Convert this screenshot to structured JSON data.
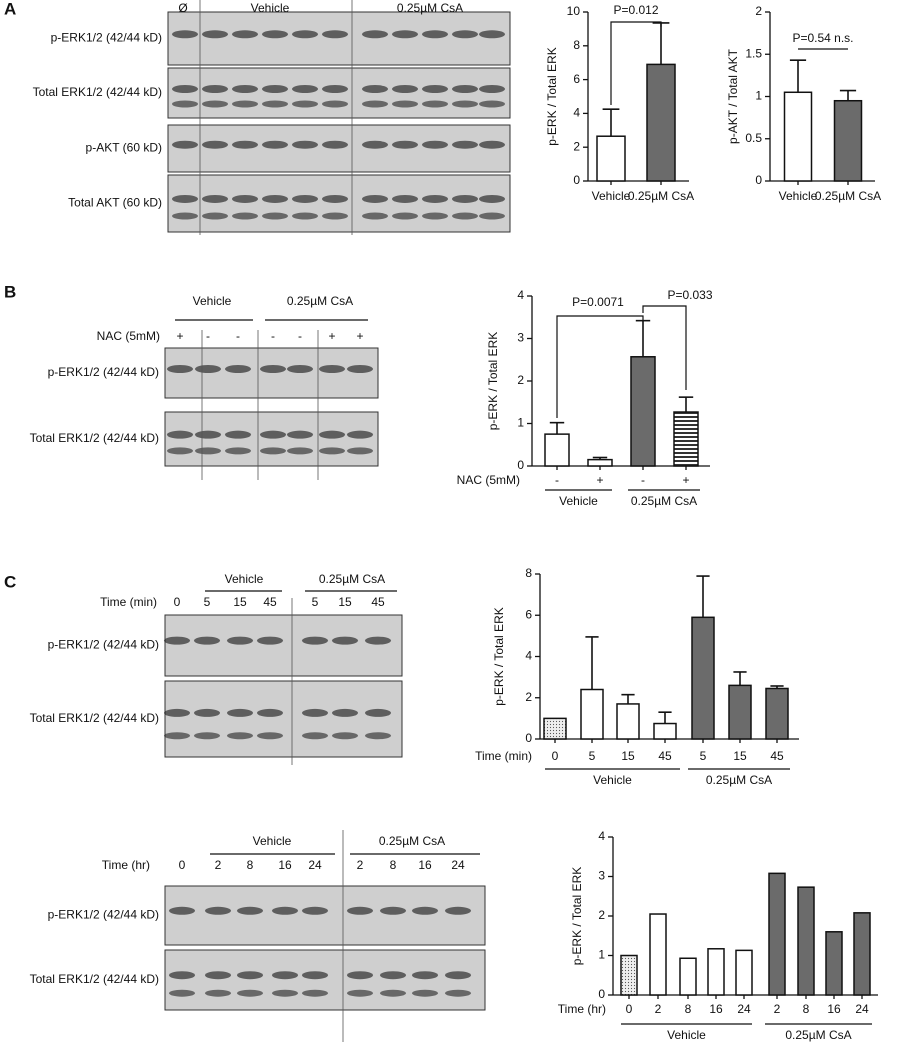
{
  "panel_labels": [
    "A",
    "B",
    "C"
  ],
  "blots": [
    {
      "groups": [
        "Ø",
        "Vehicle",
        "0.25µM CsA"
      ],
      "rows": [
        "p-ERK1/2 (42/44 kD)",
        "Total ERK1/2 (42/44 kD)",
        "p-AKT (60 kD)",
        "Total AKT (60 kD)"
      ]
    },
    {
      "groups": [
        "Vehicle",
        "0.25µM CsA"
      ],
      "lane_title": "NAC (5mM)",
      "lanes": [
        "+",
        "-",
        "-",
        "-",
        "-",
        "+",
        "+"
      ],
      "rows": [
        "p-ERK1/2 (42/44 kD)",
        "Total ERK1/2 (42/44 kD)"
      ]
    },
    {
      "groups": [
        "Vehicle",
        "0.25µM CsA"
      ],
      "lane_title": "Time (min)",
      "lanes": [
        "0",
        "5",
        "15",
        "45",
        "5",
        "15",
        "45"
      ],
      "rows": [
        "p-ERK1/2 (42/44 kD)",
        "Total ERK1/2 (42/44 kD)"
      ]
    },
    {
      "groups": [
        "Vehicle",
        "0.25µM CsA"
      ],
      "lane_title": "Time (hr)",
      "lanes": [
        "0",
        "2",
        "8",
        "16",
        "24",
        "2",
        "8",
        "16",
        "24"
      ],
      "rows": [
        "p-ERK1/2 (42/44 kD)",
        "Total ERK1/2 (42/44 kD)"
      ]
    }
  ],
  "chart_data": [
    {
      "type": "bar",
      "ylabel": "p-ERK / Total ERK",
      "categories": [
        "Vehicle",
        "0.25µM CsA"
      ],
      "values": [
        2.65,
        6.9
      ],
      "errors": [
        1.6,
        2.45
      ],
      "fills": [
        "white",
        "gray"
      ],
      "ylim": [
        0,
        10
      ],
      "yticks": [
        0,
        2,
        4,
        6,
        8,
        10
      ],
      "annotations": [
        "P=0.012"
      ]
    },
    {
      "type": "bar",
      "ylabel": "p-AKT / Total AKT",
      "categories": [
        "Vehicle",
        "0.25µM CsA"
      ],
      "values": [
        1.05,
        0.95
      ],
      "errors": [
        0.38,
        0.12
      ],
      "fills": [
        "white",
        "gray"
      ],
      "ylim": [
        0,
        2
      ],
      "yticks": [
        0,
        0.5,
        1,
        1.5,
        2
      ],
      "annotations": [
        "P=0.54 n.s."
      ]
    },
    {
      "type": "bar",
      "ylabel": "p-ERK / Total ERK",
      "xlabel": "NAC (5mM)",
      "categories": [
        "-",
        "+",
        "-",
        "+"
      ],
      "groups": [
        "Vehicle",
        "0.25µM CsA"
      ],
      "values": [
        0.75,
        0.15,
        2.57,
        1.27
      ],
      "errors": [
        0.27,
        0.05,
        0.85,
        0.35
      ],
      "fills": [
        "white",
        "white",
        "gray",
        "striped"
      ],
      "ylim": [
        0,
        4
      ],
      "yticks": [
        0,
        1,
        2,
        3,
        4
      ],
      "annotations": [
        "P=0.0071",
        "P=0.033"
      ]
    },
    {
      "type": "bar",
      "ylabel": "p-ERK / Total ERK",
      "xlabel": "Time (min)",
      "categories": [
        "0",
        "5",
        "15",
        "45",
        "5",
        "15",
        "45"
      ],
      "groups": [
        "Vehicle",
        "0.25µM CsA"
      ],
      "values": [
        1.0,
        2.4,
        1.7,
        0.75,
        5.9,
        2.6,
        2.45
      ],
      "errors": [
        null,
        2.55,
        0.45,
        0.55,
        2.0,
        0.65,
        0.12
      ],
      "fills": [
        "dotted",
        "white",
        "white",
        "white",
        "gray",
        "gray",
        "gray"
      ],
      "ylim": [
        0,
        8
      ],
      "yticks": [
        0,
        2,
        4,
        6,
        8
      ]
    },
    {
      "type": "bar",
      "ylabel": "p-ERK / Total ERK",
      "xlabel": "Time (hr)",
      "categories": [
        "0",
        "2",
        "8",
        "16",
        "24",
        "2",
        "8",
        "16",
        "24"
      ],
      "groups": [
        "Vehicle",
        "0.25µM CsA"
      ],
      "values": [
        1.0,
        2.05,
        0.93,
        1.17,
        1.13,
        3.08,
        2.73,
        1.6,
        2.08
      ],
      "fills": [
        "dotted",
        "white",
        "white",
        "white",
        "white",
        "gray",
        "gray",
        "gray",
        "gray"
      ],
      "ylim": [
        0,
        4
      ],
      "yticks": [
        0,
        1,
        2,
        3,
        4
      ]
    }
  ]
}
